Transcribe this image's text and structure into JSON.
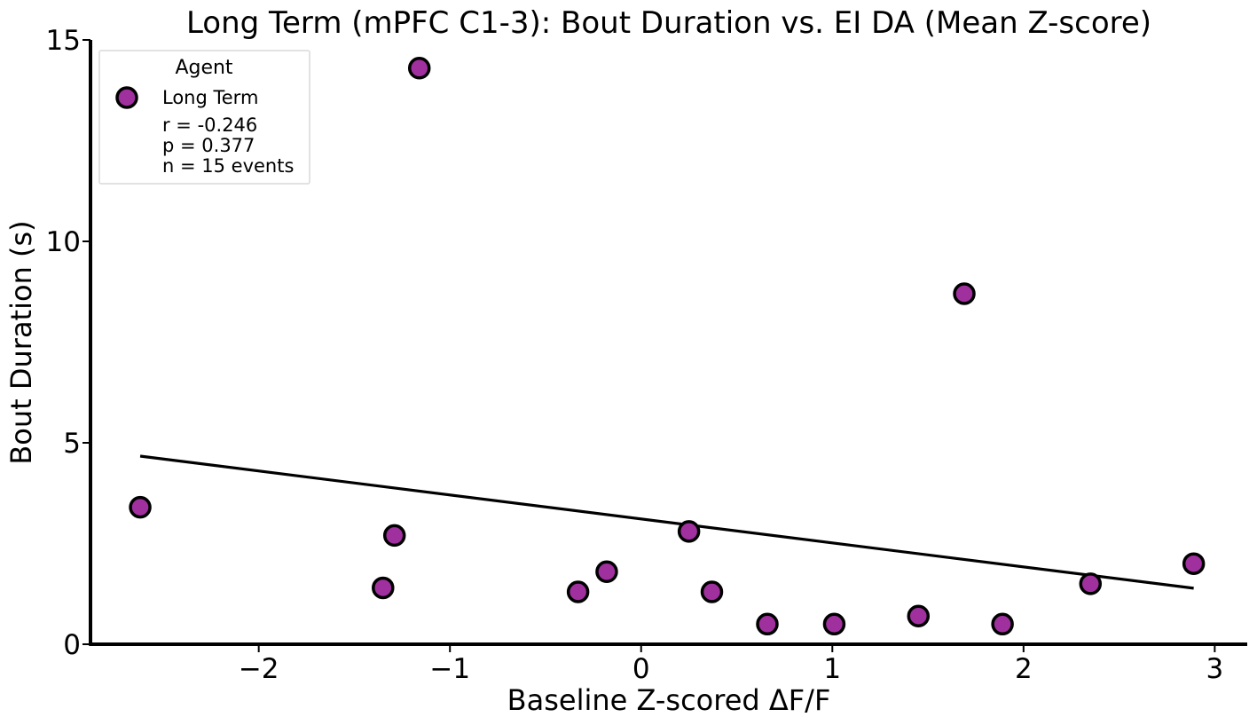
{
  "chart_data": {
    "type": "scatter",
    "title": "Long Term (mPFC C1-3): Bout Duration vs. EI DA (Mean Z-score)",
    "xlabel": "Baseline Z-scored ΔF/F",
    "ylabel": "Bout Duration (s)",
    "xlim": [
      -2.88,
      3.17
    ],
    "ylim": [
      0,
      15
    ],
    "xticks": [
      -2,
      -1,
      0,
      1,
      2,
      3
    ],
    "xtick_labels": [
      "−2",
      "−1",
      "0",
      "1",
      "2",
      "3"
    ],
    "yticks": [
      0,
      5,
      10,
      15
    ],
    "ytick_labels": [
      "0",
      "5",
      "10",
      "15"
    ],
    "grid": false,
    "legend": {
      "title": "Agent",
      "placement": "top-left",
      "entry": "Long Term",
      "stats": [
        "r = -0.246",
        "p = 0.377",
        "n = 15 events"
      ]
    },
    "series": [
      {
        "name": "Long Term",
        "color": "#A0309E",
        "edge_color": "#000000",
        "points": [
          {
            "x": -2.62,
            "y": 3.4
          },
          {
            "x": -1.35,
            "y": 1.4
          },
          {
            "x": -1.29,
            "y": 2.7
          },
          {
            "x": -1.16,
            "y": 14.3
          },
          {
            "x": -0.33,
            "y": 1.3
          },
          {
            "x": -0.18,
            "y": 1.8
          },
          {
            "x": 0.25,
            "y": 2.8
          },
          {
            "x": 0.37,
            "y": 1.3
          },
          {
            "x": 0.66,
            "y": 0.5
          },
          {
            "x": 1.01,
            "y": 0.5
          },
          {
            "x": 1.45,
            "y": 0.7
          },
          {
            "x": 1.69,
            "y": 8.7
          },
          {
            "x": 1.89,
            "y": 0.5
          },
          {
            "x": 2.35,
            "y": 1.5
          },
          {
            "x": 2.89,
            "y": 2.0
          }
        ]
      }
    ],
    "regression_line": {
      "color": "#000000",
      "x": [
        -2.62,
        2.89
      ],
      "y": [
        4.67,
        1.39
      ]
    }
  }
}
